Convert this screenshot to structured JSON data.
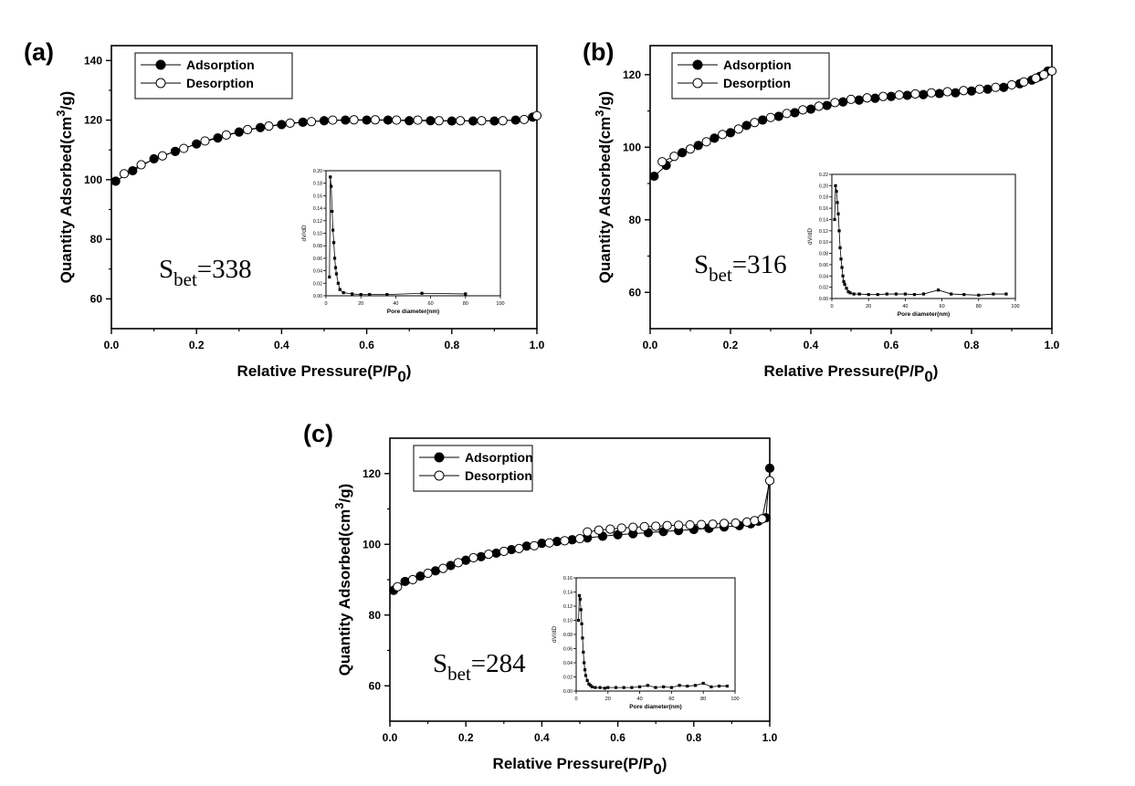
{
  "chart_data": [
    {
      "panel": "(a)",
      "type": "scatter",
      "xlabel": "Relative Pressure(P/P",
      "xlabel_sub": "0",
      "xlabel_close": ")",
      "ylabel": "Quantity Adsorbed(cm",
      "ylabel_sup": "3",
      "ylabel_tail": "/g)",
      "xlim": [
        0,
        1.0
      ],
      "ylim": [
        50,
        145
      ],
      "xticks": [
        0.0,
        0.2,
        0.4,
        0.6,
        0.8,
        1.0
      ],
      "xtick_labels": [
        "0.0",
        "0.2",
        "0.4",
        "0.6",
        "0.8",
        "1.0"
      ],
      "yticks": [
        60,
        80,
        100,
        120,
        140
      ],
      "ytick_labels": [
        "60",
        "80",
        "100",
        "120",
        "140"
      ],
      "legend_position": "top-left",
      "annotation": {
        "main": "S",
        "sub": "bet",
        "value": "=338"
      },
      "series": [
        {
          "name": "Adsorption",
          "marker": "filled-circle",
          "color": "#000000",
          "x": [
            0.01,
            0.05,
            0.1,
            0.15,
            0.2,
            0.25,
            0.3,
            0.35,
            0.4,
            0.45,
            0.5,
            0.55,
            0.6,
            0.65,
            0.7,
            0.75,
            0.8,
            0.85,
            0.9,
            0.95,
            0.99
          ],
          "y": [
            99.5,
            103,
            107,
            109.5,
            112,
            114,
            116,
            117.5,
            118.5,
            119.3,
            119.8,
            120,
            120,
            120,
            119.8,
            119.8,
            119.7,
            119.7,
            119.7,
            120,
            121
          ]
        },
        {
          "name": "Desorption",
          "marker": "open-circle",
          "color": "#000000",
          "x": [
            0.03,
            0.07,
            0.12,
            0.17,
            0.22,
            0.27,
            0.32,
            0.37,
            0.42,
            0.47,
            0.52,
            0.57,
            0.62,
            0.67,
            0.72,
            0.77,
            0.82,
            0.87,
            0.92,
            0.97,
            1.0
          ],
          "y": [
            102,
            105,
            108,
            110.5,
            113,
            115,
            116.8,
            118,
            119,
            119.5,
            120,
            120.1,
            120.1,
            120,
            120,
            119.8,
            119.8,
            119.8,
            119.8,
            120.2,
            121.5
          ]
        }
      ],
      "inset": {
        "type": "line",
        "xlabel": "Pore diameter(nm)",
        "ylabel": "dV/dD",
        "xlim": [
          0,
          100
        ],
        "ylim": [
          0,
          0.2
        ],
        "xticks": [
          0,
          20,
          40,
          60,
          80,
          100
        ],
        "xtick_labels": [
          "0",
          "20",
          "40",
          "60",
          "80",
          "100"
        ],
        "yticks": [
          0,
          0.02,
          0.04,
          0.06,
          0.08,
          0.1,
          0.12,
          0.14,
          0.16,
          0.18,
          0.2
        ],
        "ytick_labels": [
          "0.00",
          "0.02",
          "0.04",
          "0.06",
          "0.08",
          "0.10",
          "0.12",
          "0.14",
          "0.16",
          "0.18",
          "0.20"
        ],
        "x": [
          2,
          2.5,
          3,
          3.5,
          4,
          4.5,
          5,
          5.5,
          6,
          7,
          8,
          10,
          15,
          20,
          25,
          35,
          55,
          80
        ],
        "y": [
          0.03,
          0.19,
          0.175,
          0.135,
          0.105,
          0.085,
          0.06,
          0.045,
          0.035,
          0.02,
          0.01,
          0.005,
          0.003,
          0.002,
          0.002,
          0.002,
          0.004,
          0.003
        ]
      }
    },
    {
      "panel": "(b)",
      "type": "scatter",
      "xlabel": "Relative Pressure(P/P",
      "xlabel_sub": "0",
      "xlabel_close": ")",
      "ylabel": "Quantity Adsorbed(cm",
      "ylabel_sup": "3",
      "ylabel_tail": "/g)",
      "xlim": [
        0,
        1.0
      ],
      "ylim": [
        50,
        128
      ],
      "xticks": [
        0.0,
        0.2,
        0.4,
        0.6,
        0.8,
        1.0
      ],
      "xtick_labels": [
        "0.0",
        "0.2",
        "0.4",
        "0.6",
        "0.8",
        "1.0"
      ],
      "yticks": [
        60,
        80,
        100,
        120
      ],
      "ytick_labels": [
        "60",
        "80",
        "100",
        "120"
      ],
      "legend_position": "top-left",
      "annotation": {
        "main": "S",
        "sub": "bet",
        "value": "=316"
      },
      "series": [
        {
          "name": "Adsorption",
          "marker": "filled-circle",
          "color": "#000000",
          "x": [
            0.01,
            0.04,
            0.08,
            0.12,
            0.16,
            0.2,
            0.24,
            0.28,
            0.32,
            0.36,
            0.4,
            0.44,
            0.48,
            0.52,
            0.56,
            0.6,
            0.64,
            0.68,
            0.72,
            0.76,
            0.8,
            0.84,
            0.88,
            0.92,
            0.95,
            0.97,
            0.99
          ],
          "y": [
            92,
            95,
            98.5,
            100.5,
            102.5,
            104,
            106,
            107.5,
            108.5,
            109.5,
            110.5,
            111.5,
            112.5,
            113,
            113.5,
            114,
            114.3,
            114.5,
            114.8,
            115,
            115.5,
            116,
            116.5,
            117.5,
            118.5,
            119.5,
            121
          ]
        },
        {
          "name": "Desorption",
          "marker": "open-circle",
          "color": "#000000",
          "x": [
            0.03,
            0.06,
            0.1,
            0.14,
            0.18,
            0.22,
            0.26,
            0.3,
            0.34,
            0.38,
            0.42,
            0.46,
            0.5,
            0.54,
            0.58,
            0.62,
            0.66,
            0.7,
            0.74,
            0.78,
            0.82,
            0.86,
            0.9,
            0.93,
            0.96,
            0.98,
            1.0
          ],
          "y": [
            96,
            97.5,
            99.5,
            101.5,
            103.5,
            105,
            106.8,
            108.2,
            109.3,
            110.3,
            111.3,
            112.3,
            113.2,
            113.6,
            114,
            114.4,
            114.7,
            115,
            115.3,
            115.6,
            116,
            116.5,
            117.2,
            118,
            119,
            120,
            121
          ]
        }
      ],
      "inset": {
        "type": "line",
        "xlabel": "Pore diameter(nm)",
        "ylabel": "dV/dD",
        "xlim": [
          0,
          100
        ],
        "ylim": [
          0,
          0.22
        ],
        "xticks": [
          0,
          20,
          40,
          60,
          80,
          100
        ],
        "xtick_labels": [
          "0",
          "20",
          "40",
          "60",
          "80",
          "100"
        ],
        "yticks": [
          0,
          0.02,
          0.04,
          0.06,
          0.08,
          0.1,
          0.12,
          0.14,
          0.16,
          0.18,
          0.2,
          0.22
        ],
        "ytick_labels": [
          "0.00",
          "0.02",
          "0.04",
          "0.06",
          "0.08",
          "0.10",
          "0.12",
          "0.14",
          "0.16",
          "0.18",
          "0.20",
          "0.22"
        ],
        "x": [
          1.5,
          2,
          2.5,
          3,
          3.5,
          4,
          4.5,
          5,
          5.5,
          6,
          6.5,
          7,
          8,
          9,
          10,
          12,
          15,
          20,
          25,
          30,
          35,
          40,
          45,
          50,
          58,
          65,
          72,
          80,
          88,
          95
        ],
        "y": [
          0.14,
          0.2,
          0.19,
          0.17,
          0.15,
          0.12,
          0.09,
          0.07,
          0.055,
          0.04,
          0.03,
          0.025,
          0.018,
          0.012,
          0.01,
          0.008,
          0.008,
          0.007,
          0.007,
          0.008,
          0.008,
          0.008,
          0.007,
          0.008,
          0.015,
          0.008,
          0.007,
          0.006,
          0.008,
          0.008
        ]
      }
    },
    {
      "panel": "(c)",
      "type": "scatter",
      "xlabel": "Relative Pressure(P/P",
      "xlabel_sub": "0",
      "xlabel_close": ")",
      "ylabel": "Quantity Adsorbed(cm",
      "ylabel_sup": "3",
      "ylabel_tail": "/g)",
      "xlim": [
        0,
        1.0
      ],
      "ylim": [
        50,
        130
      ],
      "xticks": [
        0.0,
        0.2,
        0.4,
        0.6,
        0.8,
        1.0
      ],
      "xtick_labels": [
        "0.0",
        "0.2",
        "0.4",
        "0.6",
        "0.8",
        "1.0"
      ],
      "yticks": [
        60,
        80,
        100,
        120
      ],
      "ytick_labels": [
        "60",
        "80",
        "100",
        "120"
      ],
      "legend_position": "top-left",
      "annotation": {
        "main": "S",
        "sub": "bet",
        "value": "=284"
      },
      "series": [
        {
          "name": "Adsorption",
          "marker": "filled-circle",
          "color": "#000000",
          "x": [
            0.01,
            0.04,
            0.08,
            0.12,
            0.16,
            0.2,
            0.24,
            0.28,
            0.32,
            0.36,
            0.4,
            0.44,
            0.48,
            0.52,
            0.56,
            0.6,
            0.64,
            0.68,
            0.72,
            0.76,
            0.8,
            0.84,
            0.88,
            0.92,
            0.95,
            0.97,
            0.99,
            1.0
          ],
          "y": [
            87,
            89.5,
            91,
            92.5,
            94,
            95.5,
            96.5,
            97.5,
            98.5,
            99.5,
            100.3,
            100.8,
            101.3,
            101.8,
            102.3,
            102.7,
            103,
            103.3,
            103.6,
            103.9,
            104.2,
            104.5,
            104.9,
            105.3,
            105.8,
            106.5,
            107.5,
            121.5
          ]
        },
        {
          "name": "Desorption",
          "marker": "open-circle",
          "color": "#000000",
          "x": [
            0.02,
            0.06,
            0.1,
            0.14,
            0.18,
            0.22,
            0.26,
            0.3,
            0.34,
            0.38,
            0.42,
            0.46,
            0.5,
            0.52,
            0.55,
            0.58,
            0.61,
            0.64,
            0.67,
            0.7,
            0.73,
            0.76,
            0.79,
            0.82,
            0.85,
            0.88,
            0.91,
            0.94,
            0.96,
            0.98,
            1.0
          ],
          "y": [
            88,
            90,
            91.8,
            93.2,
            94.8,
            96.2,
            97.2,
            98,
            98.8,
            99.6,
            100.4,
            101,
            101.6,
            103.5,
            104,
            104.3,
            104.6,
            104.8,
            105,
            105.1,
            105.3,
            105.4,
            105.5,
            105.6,
            105.7,
            105.9,
            106,
            106.3,
            106.7,
            107.2,
            118
          ]
        }
      ],
      "inset": {
        "type": "line",
        "xlabel": "Pore diameter(nm)",
        "ylabel": "dV/dD",
        "xlim": [
          0,
          100
        ],
        "ylim": [
          0,
          0.16
        ],
        "xticks": [
          0,
          20,
          40,
          60,
          80,
          100
        ],
        "xtick_labels": [
          "0",
          "20",
          "40",
          "60",
          "80",
          "100"
        ],
        "yticks": [
          0,
          0.02,
          0.04,
          0.06,
          0.08,
          0.1,
          0.12,
          0.14,
          0.16
        ],
        "ytick_labels": [
          "0.00",
          "0.02",
          "0.04",
          "0.06",
          "0.08",
          "0.10",
          "0.12",
          "0.14",
          "0.16"
        ],
        "x": [
          1.5,
          2,
          2.5,
          3,
          3.5,
          4,
          4.5,
          5,
          5.5,
          6,
          7,
          8,
          9,
          10,
          12,
          15,
          18,
          20,
          25,
          30,
          35,
          40,
          45,
          50,
          55,
          60,
          65,
          70,
          75,
          80,
          85,
          90,
          95
        ],
        "y": [
          0.1,
          0.135,
          0.13,
          0.115,
          0.095,
          0.075,
          0.055,
          0.04,
          0.03,
          0.022,
          0.015,
          0.01,
          0.008,
          0.006,
          0.005,
          0.005,
          0.004,
          0.005,
          0.005,
          0.005,
          0.005,
          0.006,
          0.008,
          0.005,
          0.006,
          0.005,
          0.008,
          0.007,
          0.008,
          0.011,
          0.006,
          0.007,
          0.007
        ]
      }
    }
  ]
}
